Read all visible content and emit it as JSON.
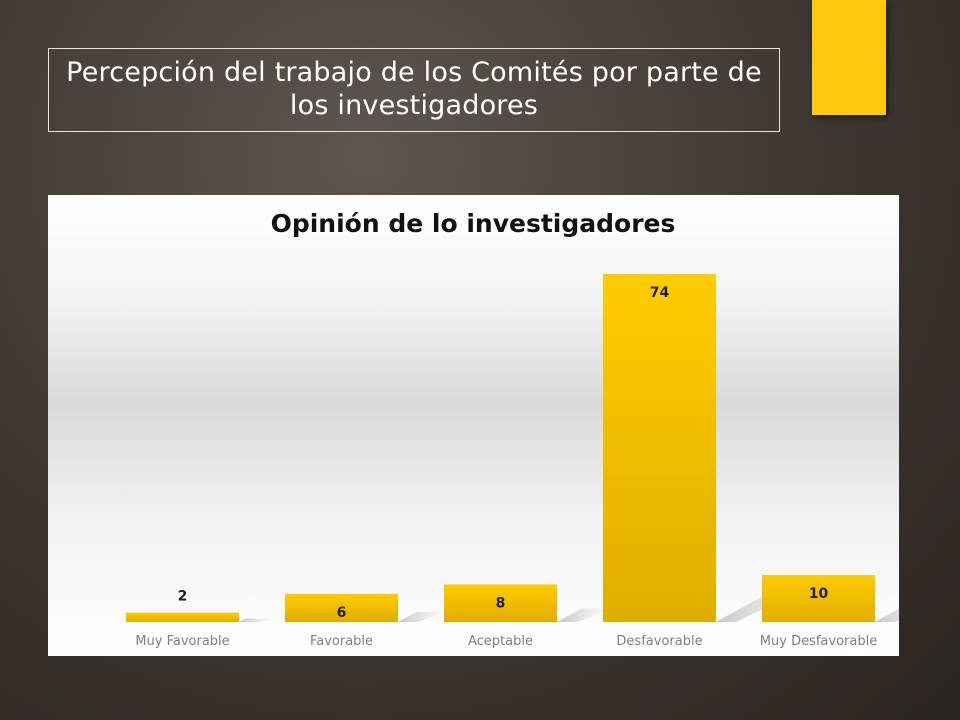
{
  "slide": {
    "title": "Percepción del trabajo de los Comités por parte de los investigadores",
    "accent_color": "#ffc90e"
  },
  "chart_data": {
    "type": "bar",
    "title": "Opinión de lo investigadores",
    "categories": [
      "Muy Favorable",
      "Favorable",
      "Aceptable",
      "Desfavorable",
      "Muy Desfavorable"
    ],
    "values": [
      2,
      6,
      8,
      74,
      10
    ],
    "ylim": [
      0,
      74
    ],
    "grid": false,
    "legend": "none",
    "bar_color": "#ffc90e"
  }
}
